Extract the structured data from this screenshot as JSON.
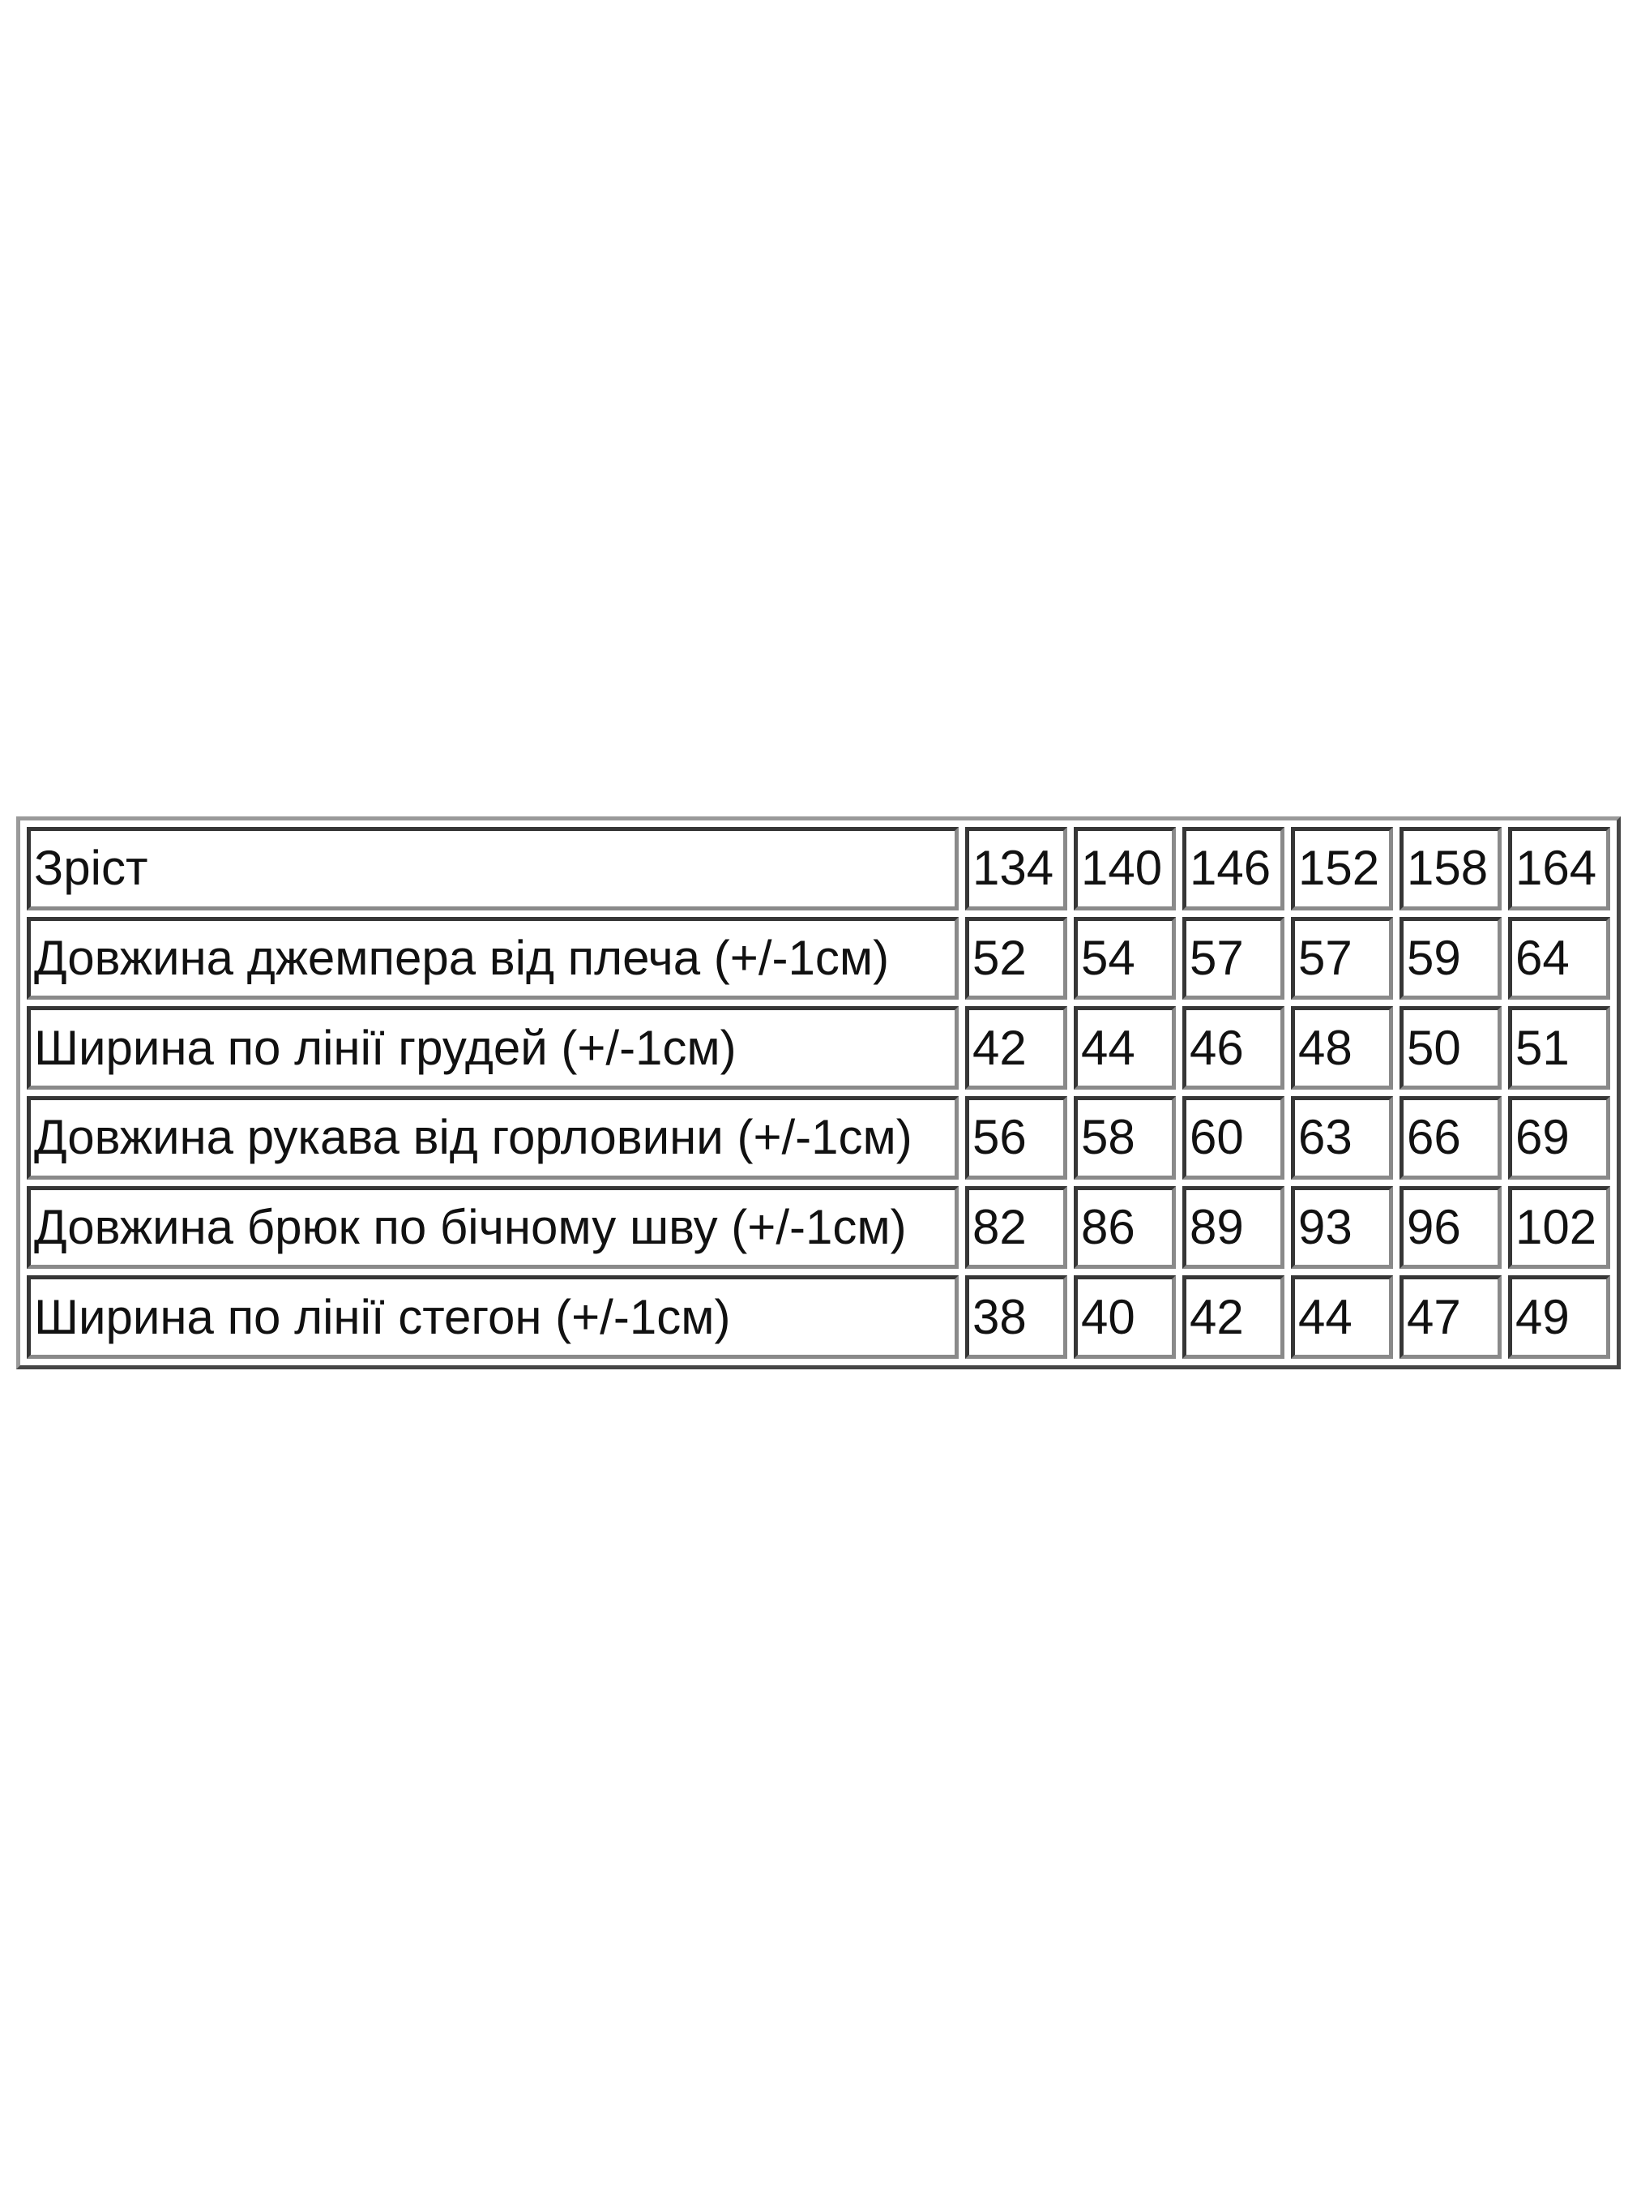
{
  "table": {
    "header": {
      "label": "Зріст",
      "sizes": [
        "134",
        "140",
        "146",
        "152",
        "158",
        "164"
      ]
    },
    "rows": [
      {
        "label": "Довжина джемпера від плеча (+/-1см)",
        "values": [
          "52",
          "54",
          "57",
          "57",
          "59",
          "64"
        ]
      },
      {
        "label": "Ширина по лінії грудей (+/-1см)",
        "values": [
          "42",
          "44",
          "46",
          "48",
          "50",
          "51"
        ]
      },
      {
        "label": "Довжина рукава від горловини (+/-1см)",
        "values": [
          "56",
          "58",
          "60",
          "63",
          "66",
          "69"
        ]
      },
      {
        "label": "Довжина брюк по бічному шву (+/-1см)",
        "values": [
          "82",
          "86",
          "89",
          "93",
          "96",
          "102"
        ]
      },
      {
        "label": "Ширина по лінії стегон (+/-1см)",
        "values": [
          "38",
          "40",
          "42",
          "44",
          "47",
          "49"
        ]
      }
    ]
  }
}
